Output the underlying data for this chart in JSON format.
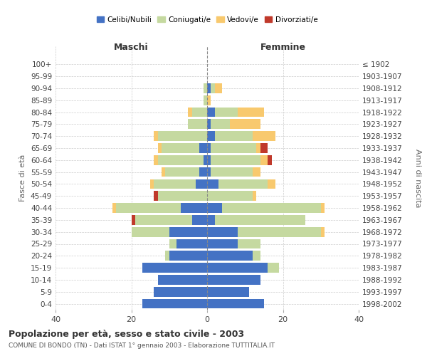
{
  "age_groups": [
    "0-4",
    "5-9",
    "10-14",
    "15-19",
    "20-24",
    "25-29",
    "30-34",
    "35-39",
    "40-44",
    "45-49",
    "50-54",
    "55-59",
    "60-64",
    "65-69",
    "70-74",
    "75-79",
    "80-84",
    "85-89",
    "90-94",
    "95-99",
    "100+"
  ],
  "birth_years": [
    "1998-2002",
    "1993-1997",
    "1988-1992",
    "1983-1987",
    "1978-1982",
    "1973-1977",
    "1968-1972",
    "1963-1967",
    "1958-1962",
    "1953-1957",
    "1948-1952",
    "1943-1947",
    "1938-1942",
    "1933-1937",
    "1928-1932",
    "1923-1927",
    "1918-1922",
    "1913-1917",
    "1908-1912",
    "1903-1907",
    "≤ 1902"
  ],
  "male_celibi": [
    17,
    14,
    13,
    17,
    10,
    8,
    10,
    4,
    7,
    0,
    3,
    2,
    1,
    2,
    0,
    0,
    0,
    0,
    0,
    0,
    0
  ],
  "male_coniugati": [
    0,
    0,
    0,
    0,
    1,
    2,
    10,
    15,
    17,
    13,
    11,
    9,
    12,
    10,
    13,
    5,
    4,
    1,
    1,
    0,
    0
  ],
  "male_vedovi": [
    0,
    0,
    0,
    0,
    0,
    0,
    0,
    0,
    1,
    0,
    1,
    1,
    1,
    1,
    1,
    0,
    1,
    0,
    0,
    0,
    0
  ],
  "male_divorziati": [
    0,
    0,
    0,
    0,
    0,
    0,
    0,
    1,
    0,
    1,
    0,
    0,
    0,
    0,
    0,
    0,
    0,
    0,
    0,
    0,
    0
  ],
  "female_celibi": [
    15,
    11,
    14,
    16,
    12,
    8,
    8,
    2,
    4,
    0,
    3,
    1,
    1,
    1,
    2,
    1,
    2,
    0,
    1,
    0,
    0
  ],
  "female_coniugati": [
    0,
    0,
    0,
    3,
    2,
    6,
    22,
    24,
    26,
    12,
    13,
    11,
    13,
    12,
    10,
    5,
    6,
    0,
    1,
    0,
    0
  ],
  "female_vedovi": [
    0,
    0,
    0,
    0,
    0,
    0,
    1,
    0,
    1,
    1,
    2,
    2,
    2,
    1,
    6,
    8,
    7,
    1,
    2,
    0,
    0
  ],
  "female_divorziati": [
    0,
    0,
    0,
    0,
    0,
    0,
    0,
    0,
    0,
    0,
    0,
    0,
    1,
    2,
    0,
    0,
    0,
    0,
    0,
    0,
    0
  ],
  "colors": {
    "celibi": "#4472c4",
    "coniugati": "#c5d9a0",
    "vedovi": "#f8c96e",
    "divorziati": "#c0392b"
  },
  "xlim": 40,
  "title": "Popolazione per età, sesso e stato civile - 2003",
  "subtitle": "COMUNE DI BONDO (TN) - Dati ISTAT 1° gennaio 2003 - Elaborazione TUTTITALIA.IT",
  "ylabel_left": "Fasce di età",
  "ylabel_right": "Anni di nascita",
  "xlabel_left": "Maschi",
  "xlabel_right": "Femmine"
}
